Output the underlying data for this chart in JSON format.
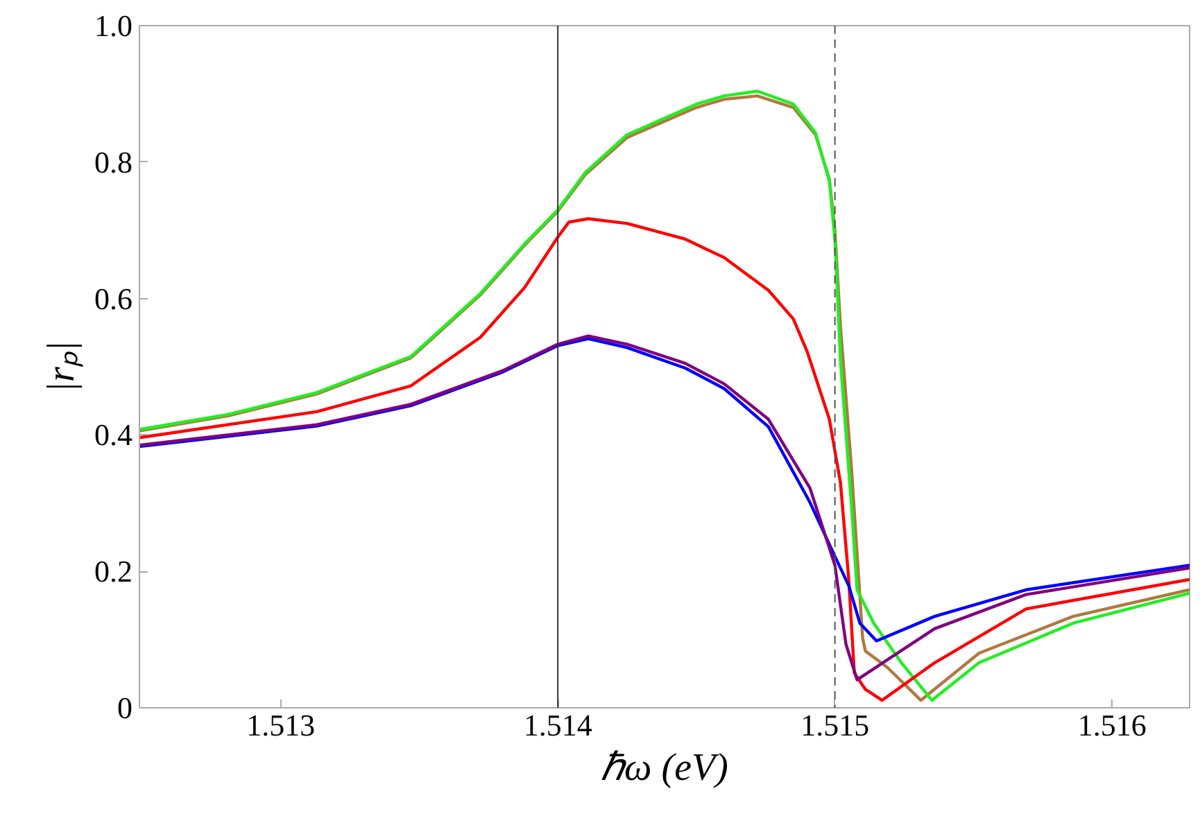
{
  "chart_data": {
    "type": "line",
    "xlabel": "ℏω (eV)",
    "ylabel": "|rₚ|",
    "xlim": [
      1.51249,
      1.51628
    ],
    "ylim": [
      0,
      1.0
    ],
    "xticks": [
      1.513,
      1.514,
      1.515,
      1.516
    ],
    "yticks": [
      0,
      0.2,
      0.4,
      0.6,
      0.8,
      {
        "value": 1.0,
        "label": "1.0"
      }
    ],
    "grid": false,
    "marker": "none",
    "line_style": "solid",
    "series": [
      {
        "color": "#b07840",
        "x": [
          1.51249,
          1.51281,
          1.51313,
          1.51347,
          1.51372,
          1.51388,
          1.514,
          1.5141,
          1.51425,
          1.5145,
          1.5146,
          1.51472,
          1.51485,
          1.51493,
          1.51498,
          1.515,
          1.51502,
          1.51506,
          1.5151,
          1.51511,
          1.51519,
          1.51531,
          1.51552,
          1.51586,
          1.51628
        ],
        "values": [
          0.406,
          0.428,
          0.46,
          0.513,
          0.605,
          0.678,
          0.728,
          0.782,
          0.836,
          0.88,
          0.892,
          0.897,
          0.88,
          0.84,
          0.775,
          0.7,
          0.56,
          0.35,
          0.102,
          0.083,
          0.059,
          0.011,
          0.08,
          0.134,
          0.173
        ]
      },
      {
        "color": "#22ee22",
        "x": [
          1.51249,
          1.51281,
          1.51313,
          1.51347,
          1.51372,
          1.51388,
          1.514,
          1.5141,
          1.51425,
          1.5145,
          1.5146,
          1.51472,
          1.51485,
          1.51493,
          1.51498,
          1.515,
          1.51502,
          1.51506,
          1.51508,
          1.51514,
          1.51524,
          1.51535,
          1.51552,
          1.51586,
          1.51628
        ],
        "values": [
          0.408,
          0.43,
          0.462,
          0.515,
          0.607,
          0.68,
          0.73,
          0.785,
          0.84,
          0.885,
          0.897,
          0.904,
          0.885,
          0.843,
          0.772,
          0.686,
          0.509,
          0.295,
          0.173,
          0.124,
          0.066,
          0.011,
          0.066,
          0.124,
          0.168
        ]
      },
      {
        "color": "#ff0000",
        "x": [
          1.51249,
          1.51313,
          1.51347,
          1.51372,
          1.51388,
          1.514,
          1.51404,
          1.51411,
          1.51425,
          1.51446,
          1.5146,
          1.51476,
          1.51485,
          1.5149,
          1.51498,
          1.51502,
          1.51505,
          1.51507,
          1.51511,
          1.51517,
          1.51536,
          1.51569,
          1.51628
        ],
        "values": [
          0.396,
          0.434,
          0.472,
          0.543,
          0.616,
          0.69,
          0.712,
          0.717,
          0.71,
          0.687,
          0.66,
          0.612,
          0.57,
          0.522,
          0.423,
          0.33,
          0.188,
          0.051,
          0.027,
          0.011,
          0.066,
          0.145,
          0.188
        ]
      },
      {
        "color": "#0000ff",
        "x": [
          1.51249,
          1.51313,
          1.51347,
          1.5138,
          1.514,
          1.51411,
          1.51425,
          1.51446,
          1.5146,
          1.51476,
          1.51491,
          1.515,
          1.51505,
          1.51509,
          1.51515,
          1.51536,
          1.51569,
          1.51628
        ],
        "values": [
          0.383,
          0.413,
          0.443,
          0.492,
          0.531,
          0.541,
          0.528,
          0.498,
          0.468,
          0.412,
          0.301,
          0.222,
          0.179,
          0.124,
          0.098,
          0.134,
          0.173,
          0.209
        ]
      },
      {
        "color": "#800080",
        "x": [
          1.51249,
          1.51313,
          1.51347,
          1.5138,
          1.514,
          1.51411,
          1.51425,
          1.51446,
          1.5146,
          1.51476,
          1.51491,
          1.515,
          1.51504,
          1.51508,
          1.51536,
          1.51569,
          1.51628
        ],
        "values": [
          0.385,
          0.415,
          0.445,
          0.494,
          0.533,
          0.545,
          0.533,
          0.505,
          0.475,
          0.423,
          0.322,
          0.209,
          0.093,
          0.041,
          0.116,
          0.166,
          0.205
        ]
      }
    ],
    "ref_lines": [
      {
        "axis": "x",
        "value": 1.514,
        "color": "#333333",
        "line_style": "solid"
      },
      {
        "axis": "x",
        "value": 1.515,
        "color": "#555555",
        "line_style": "dashed"
      }
    ]
  }
}
